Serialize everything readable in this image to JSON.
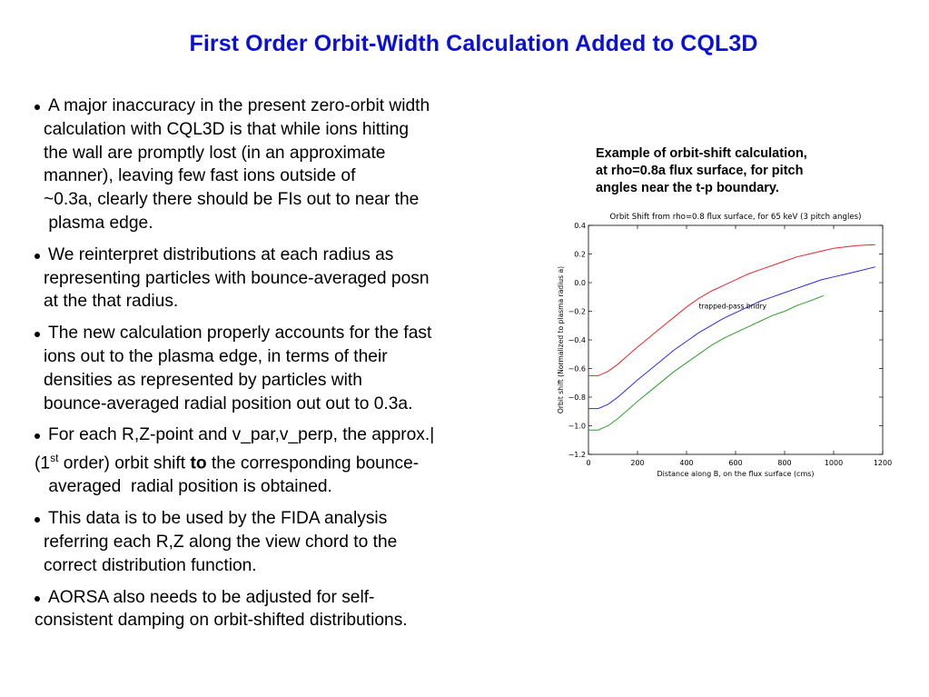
{
  "slide": {
    "title": "First Order Orbit-Width Calculation Added to CQL3D",
    "bullets": [
      {
        "lines": [
          "A major inaccuracy in the present zero-orbit width",
          "calculation with CQL3D is that while ions hitting",
          "the wall are promptly lost (in an approximate",
          "manner), leaving few fast ions outside of",
          "~0.3a, clearly there should be FIs out to near the",
          " plasma edge."
        ]
      },
      {
        "lines": [
          "We reinterpret distributions at each radius as",
          "representing particles with bounce-averaged posn",
          "at the that radius."
        ]
      },
      {
        "lines": [
          "The new calculation properly accounts for the fast",
          "ions out to the plasma edge, in terms of their",
          "densities as represented by particles with",
          "bounce-averaged radial position out out to 0.3a."
        ]
      },
      {
        "line1": "For each R,Z-point and v_par,v_perp, the approx.|",
        "line2_a": "(1",
        "line2_sup": "st",
        "line2_b": " order) orbit shift ",
        "line2_bold": "to",
        "line2_c": " the corresponding bounce-",
        "line3": " averaged  radial position is obtained."
      },
      {
        "lines": [
          "This data is to be used by the FIDA analysis",
          "referring each R,Z along the view chord to the",
          "correct distribution function."
        ]
      },
      {
        "line1": "AORSA also needs to be adjusted for self-",
        "line2": "consistent damping on orbit-shifted distributions."
      }
    ],
    "caption": [
      "Example of orbit-shift calculation,",
      "at rho=0.8a flux surface, for pitch",
      "angles near the t-p boundary."
    ]
  },
  "chart_data": {
    "type": "line",
    "title": "Orbit Shift from rho=0.8 flux surface, for 65 keV (3 pitch angles)",
    "xlabel": "Distance along B, on the flux surface (cms)",
    "ylabel": "Orbit shift (Normalized to plasma radius a)",
    "xlim": [
      0,
      1200
    ],
    "ylim": [
      -1.2,
      0.4
    ],
    "xticks": [
      0,
      200,
      400,
      600,
      800,
      1000,
      1200
    ],
    "xtick_labels": [
      "0",
      "200",
      "400",
      "600",
      "800",
      "1000",
      "1200"
    ],
    "yticks": [
      0.4,
      0.2,
      0.0,
      -0.2,
      -0.4,
      -0.6,
      -0.8,
      -1.0,
      -1.2
    ],
    "ytick_labels": [
      "0.4",
      "0.2",
      "0.0",
      "−0.2",
      "−0.4",
      "−0.6",
      "−0.8",
      "−1.0",
      "−1.2"
    ],
    "grid": false,
    "annotation": {
      "text": "trapped-pass bndry",
      "x": 450,
      "y": -0.18
    },
    "series": [
      {
        "color": "#e8262a",
        "x": [
          0,
          40,
          80,
          120,
          160,
          200,
          250,
          300,
          350,
          400,
          450,
          500,
          550,
          600,
          650,
          700,
          750,
          800,
          850,
          900,
          950,
          1000,
          1050,
          1100,
          1170
        ],
        "y": [
          -0.65,
          -0.65,
          -0.62,
          -0.57,
          -0.51,
          -0.45,
          -0.38,
          -0.31,
          -0.24,
          -0.17,
          -0.11,
          -0.06,
          -0.02,
          0.02,
          0.06,
          0.09,
          0.12,
          0.15,
          0.18,
          0.2,
          0.22,
          0.24,
          0.25,
          0.26,
          0.265
        ]
      },
      {
        "color": "#2a2ae8",
        "x": [
          0,
          40,
          80,
          120,
          160,
          200,
          250,
          300,
          350,
          400,
          450,
          500,
          550,
          600,
          650,
          700,
          750,
          800,
          850,
          900,
          950,
          1000,
          1050,
          1100,
          1170
        ],
        "y": [
          -0.88,
          -0.88,
          -0.85,
          -0.8,
          -0.74,
          -0.68,
          -0.61,
          -0.54,
          -0.47,
          -0.41,
          -0.35,
          -0.3,
          -0.25,
          -0.21,
          -0.17,
          -0.13,
          -0.1,
          -0.07,
          -0.04,
          -0.01,
          0.02,
          0.04,
          0.06,
          0.08,
          0.11
        ]
      },
      {
        "color": "#2ca02c",
        "x": [
          0,
          40,
          80,
          120,
          160,
          200,
          250,
          300,
          350,
          400,
          450,
          500,
          550,
          600,
          650,
          700,
          750,
          800,
          850,
          900,
          960
        ],
        "y": [
          -1.03,
          -1.03,
          -1.0,
          -0.95,
          -0.89,
          -0.83,
          -0.76,
          -0.69,
          -0.62,
          -0.56,
          -0.5,
          -0.44,
          -0.39,
          -0.35,
          -0.31,
          -0.27,
          -0.23,
          -0.2,
          -0.16,
          -0.13,
          -0.09
        ]
      }
    ]
  }
}
